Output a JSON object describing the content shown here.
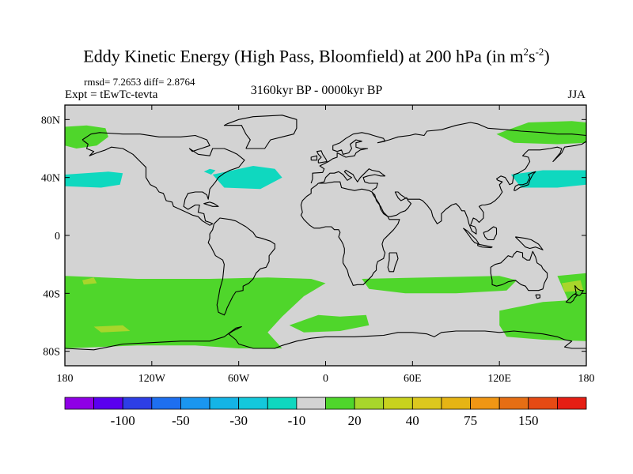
{
  "title": {
    "main": "Eddy Kinetic Energy (High Pass, Bloomfield) at 200 hPa (in m",
    "sup1": "2",
    "mid": "s",
    "sup2": "-2",
    "close": ")"
  },
  "stats": "rmsd= 7.2653 diff= 2.8764",
  "expt": "Expt = tEwTc-tevta",
  "period": "3160kyr BP - 0000kyr BP",
  "season": "JJA",
  "map": {
    "projection": "cylindrical equidistant",
    "lon_range": [
      -180,
      180
    ],
    "lat_range": [
      -90,
      90
    ],
    "land_background": "#d3d3d3",
    "x_ticks": [
      {
        "lon": -180,
        "label": "180"
      },
      {
        "lon": -120,
        "label": "120W"
      },
      {
        "lon": -60,
        "label": "60W"
      },
      {
        "lon": 0,
        "label": "0"
      },
      {
        "lon": 60,
        "label": "60E"
      },
      {
        "lon": 120,
        "label": "120E"
      },
      {
        "lon": 180,
        "label": "180"
      }
    ],
    "y_ticks": [
      {
        "lat": 80,
        "label": "80N"
      },
      {
        "lat": 40,
        "label": "40N"
      },
      {
        "lat": 0,
        "label": "0"
      },
      {
        "lat": -40,
        "label": "40S"
      },
      {
        "lat": -80,
        "label": "80S"
      }
    ],
    "fields": [
      {
        "level": "green",
        "color": "#4fd62b",
        "polygons": [
          [
            [
              -180,
              75
            ],
            [
              -165,
              76
            ],
            [
              -152,
              74
            ],
            [
              -150,
              68
            ],
            [
              -158,
              62
            ],
            [
              -172,
              60
            ],
            [
              -180,
              62
            ]
          ],
          [
            [
              -180,
              -28
            ],
            [
              -130,
              -30
            ],
            [
              -80,
              -30
            ],
            [
              -40,
              -29
            ],
            [
              -10,
              -30
            ],
            [
              0,
              -33
            ],
            [
              -15,
              -42
            ],
            [
              -30,
              -56
            ],
            [
              -40,
              -67
            ],
            [
              -30,
              -78
            ],
            [
              -60,
              -78
            ],
            [
              -90,
              -76
            ],
            [
              -130,
              -76
            ],
            [
              -180,
              -78
            ]
          ],
          [
            [
              -25,
              -62
            ],
            [
              -5,
              -55
            ],
            [
              10,
              -56
            ],
            [
              28,
              -55
            ],
            [
              30,
              -62
            ],
            [
              10,
              -66
            ],
            [
              -15,
              -67
            ]
          ],
          [
            [
              25,
              -30
            ],
            [
              70,
              -29
            ],
            [
              120,
              -28
            ],
            [
              132,
              -31
            ],
            [
              125,
              -38
            ],
            [
              90,
              -40
            ],
            [
              55,
              -40
            ],
            [
              30,
              -37
            ]
          ],
          [
            [
              120,
              -52
            ],
            [
              150,
              -46
            ],
            [
              180,
              -44
            ],
            [
              180,
              -73
            ],
            [
              150,
              -72
            ],
            [
              125,
              -70
            ],
            [
              120,
              -62
            ]
          ],
          [
            [
              160,
              -28
            ],
            [
              180,
              -26
            ],
            [
              180,
              -44
            ],
            [
              168,
              -46
            ]
          ],
          [
            [
              118,
              70
            ],
            [
              140,
              78
            ],
            [
              170,
              79
            ],
            [
              180,
              78
            ],
            [
              180,
              64
            ],
            [
              160,
              63
            ],
            [
              130,
              64
            ]
          ]
        ]
      },
      {
        "level": "teal",
        "color": "#0fd8bf",
        "polygons": [
          [
            [
              -180,
              42
            ],
            [
              -150,
              44
            ],
            [
              -140,
              43
            ],
            [
              -142,
              35
            ],
            [
              -155,
              33
            ],
            [
              -180,
              34
            ]
          ],
          [
            [
              -78,
              42
            ],
            [
              -50,
              48
            ],
            [
              -35,
              46
            ],
            [
              -30,
              40
            ],
            [
              -45,
              32
            ],
            [
              -70,
              33
            ]
          ],
          [
            [
              -84,
              44
            ],
            [
              -80,
              46
            ],
            [
              -76,
              45
            ],
            [
              -79,
              42
            ]
          ],
          [
            [
              128,
              42
            ],
            [
              150,
              45
            ],
            [
              180,
              45
            ],
            [
              180,
              35
            ],
            [
              160,
              33
            ],
            [
              135,
              33
            ]
          ]
        ]
      },
      {
        "level": "yellow-green",
        "color": "#a8d62b",
        "polygons": [
          [
            [
              -168,
              -31
            ],
            [
              -160,
              -29
            ],
            [
              -158,
              -33
            ],
            [
              -167,
              -34
            ]
          ],
          [
            [
              -160,
              -63
            ],
            [
              -140,
              -62
            ],
            [
              -135,
              -66
            ],
            [
              -155,
              -67
            ]
          ],
          [
            [
              163,
              -33
            ],
            [
              176,
              -31
            ],
            [
              178,
              -38
            ],
            [
              165,
              -39
            ]
          ]
        ]
      }
    ]
  },
  "colorbar": {
    "colors": [
      "#8f00e6",
      "#5a00f0",
      "#2d3ee6",
      "#1e6ff0",
      "#1a96f0",
      "#14b4e6",
      "#14c8dc",
      "#0fd8bf",
      "#d3d3d3",
      "#4fd62b",
      "#a8d62b",
      "#c8d21e",
      "#dcc81e",
      "#e6b414",
      "#f09614",
      "#e66e14",
      "#e64a14",
      "#e61e14"
    ],
    "labels": [
      {
        "after_box": 2,
        "label": "-100"
      },
      {
        "after_box": 4,
        "label": "-50"
      },
      {
        "after_box": 6,
        "label": "-30"
      },
      {
        "after_box": 8,
        "label": "-10"
      },
      {
        "after_box": 10,
        "label": "20"
      },
      {
        "after_box": 12,
        "label": "40"
      },
      {
        "after_box": 14,
        "label": "75"
      },
      {
        "after_box": 16,
        "label": "150"
      }
    ]
  }
}
